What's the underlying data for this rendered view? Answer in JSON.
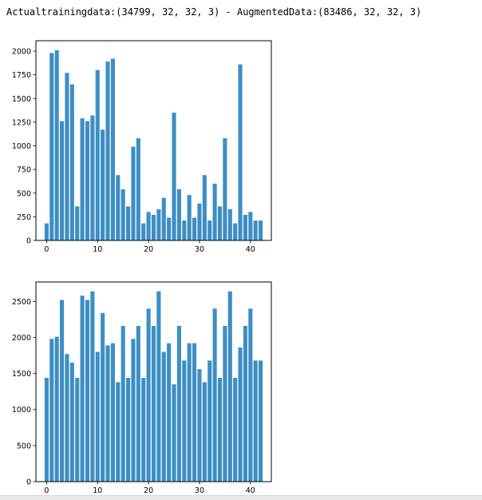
{
  "output": {
    "text": "Actualtrainingdata:(34799, 32, 32, 3) - AugmentedData:(83486, 32, 32, 3)"
  },
  "colors": {
    "bar": "#3d8ec4",
    "axis": "#000000"
  },
  "chart_data": [
    {
      "type": "bar",
      "title": "",
      "xlabel": "",
      "ylabel": "",
      "x": [
        0,
        1,
        2,
        3,
        4,
        5,
        6,
        7,
        8,
        9,
        10,
        11,
        12,
        13,
        14,
        15,
        16,
        17,
        18,
        19,
        20,
        21,
        22,
        23,
        24,
        25,
        26,
        27,
        28,
        29,
        30,
        31,
        32,
        33,
        34,
        35,
        36,
        37,
        38,
        39,
        40,
        41,
        42
      ],
      "values": [
        180,
        1980,
        2010,
        1260,
        1770,
        1650,
        360,
        1290,
        1260,
        1320,
        1800,
        1170,
        1890,
        1920,
        690,
        540,
        360,
        990,
        1080,
        180,
        300,
        270,
        330,
        450,
        240,
        1350,
        540,
        210,
        480,
        240,
        390,
        690,
        210,
        600,
        360,
        1080,
        330,
        180,
        1860,
        270,
        300,
        210,
        210
      ],
      "xlim": [
        -2.1,
        44.1
      ],
      "ylim": [
        0,
        2110
      ],
      "xticks": [
        0,
        10,
        20,
        30,
        40
      ],
      "yticks": [
        0,
        250,
        500,
        750,
        1000,
        1250,
        1500,
        1750,
        2000
      ]
    },
    {
      "type": "bar",
      "title": "",
      "xlabel": "",
      "ylabel": "",
      "x": [
        0,
        1,
        2,
        3,
        4,
        5,
        6,
        7,
        8,
        9,
        10,
        11,
        12,
        13,
        14,
        15,
        16,
        17,
        18,
        19,
        20,
        21,
        22,
        23,
        24,
        25,
        26,
        27,
        28,
        29,
        30,
        31,
        32,
        33,
        34,
        35,
        36,
        37,
        38,
        39,
        40,
        41,
        42
      ],
      "values": [
        1440,
        1980,
        2010,
        2520,
        1770,
        1650,
        1440,
        2580,
        2520,
        2640,
        1800,
        2340,
        1890,
        1920,
        1380,
        2160,
        1440,
        1980,
        2160,
        1440,
        2400,
        2160,
        2640,
        1800,
        1920,
        1350,
        2160,
        1680,
        1920,
        1920,
        1560,
        1380,
        1680,
        2400,
        1440,
        2160,
        2640,
        1440,
        1860,
        2160,
        2400,
        1680,
        1680
      ],
      "xlim": [
        -2.1,
        44.1
      ],
      "ylim": [
        0,
        2770
      ],
      "xticks": [
        0,
        10,
        20,
        30,
        40
      ],
      "yticks": [
        0,
        500,
        1000,
        1500,
        2000,
        2500
      ]
    }
  ]
}
